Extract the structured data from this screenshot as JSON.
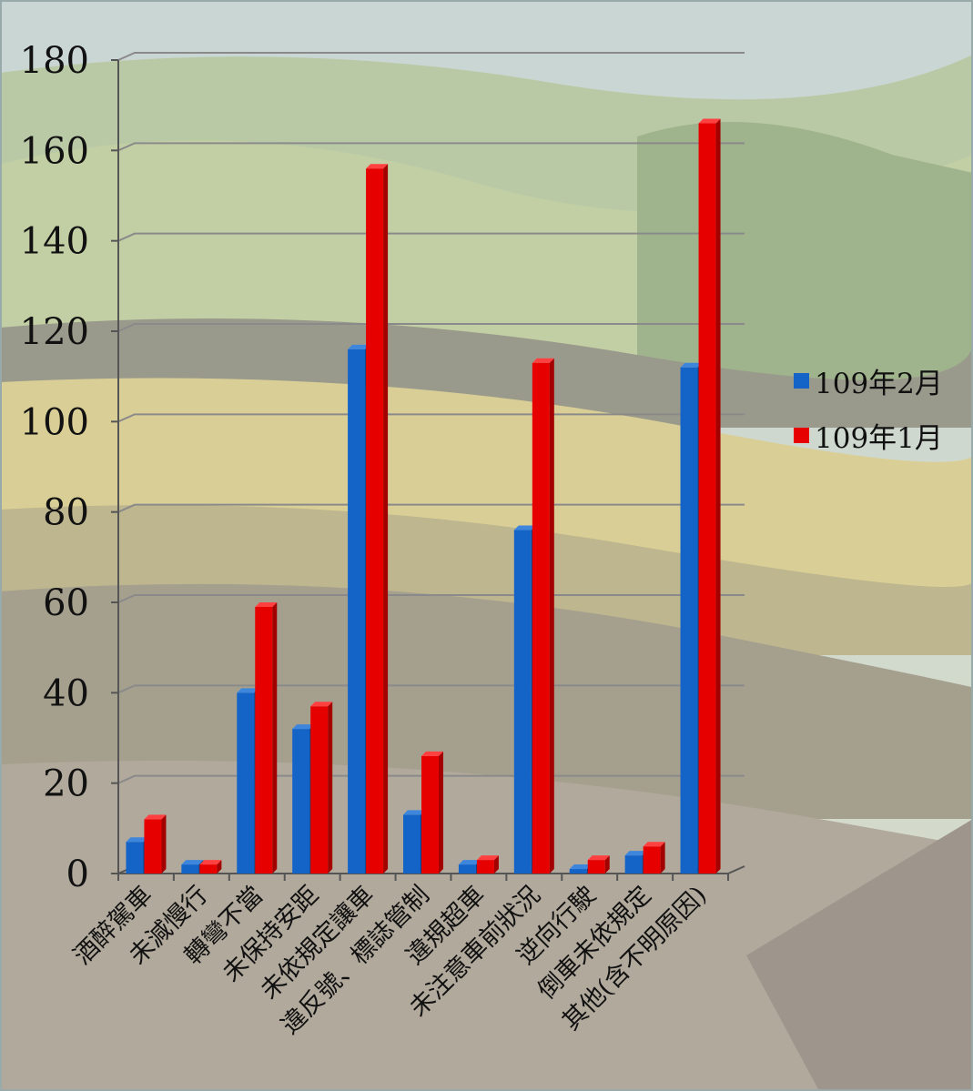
{
  "colors": {
    "series_feb": "#1464c8",
    "series_jan": "#e60000"
  },
  "chart_data": {
    "type": "bar",
    "categories": [
      "酒醉駕車",
      "未減慢行",
      "轉彎不當",
      "未保持安距",
      "未依規定讓車",
      "違反號、標誌管制",
      "違規超車",
      "未注意車前狀況",
      "逆向行駛",
      "倒車未依規定",
      "其他(含不明原因)"
    ],
    "series": [
      {
        "name": "109年2月",
        "values": [
          7,
          2,
          40,
          32,
          116,
          13,
          2,
          76,
          1,
          4,
          112
        ]
      },
      {
        "name": "109年1月",
        "values": [
          12,
          2,
          59,
          37,
          156,
          26,
          3,
          113,
          3,
          6,
          166
        ]
      }
    ],
    "ylim": [
      0,
      180
    ],
    "yticks": [
      "0",
      "20",
      "40",
      "60",
      "80",
      "100",
      "120",
      "140",
      "160",
      "180"
    ],
    "grid": true,
    "legend_position": "right"
  }
}
